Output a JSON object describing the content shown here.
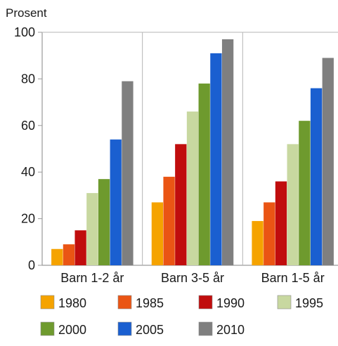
{
  "chart_data": {
    "type": "bar",
    "ylabel": "Prosent",
    "ylim": [
      0,
      100
    ],
    "yticks": [
      0,
      20,
      40,
      60,
      80,
      100
    ],
    "categories": [
      "Barn 1-2 år",
      "Barn 3-5 år",
      "Barn 1-5 år"
    ],
    "series": [
      {
        "name": "1980",
        "color": "#f5a300",
        "values": [
          7,
          27,
          19
        ]
      },
      {
        "name": "1985",
        "color": "#ea5514",
        "values": [
          9,
          38,
          27
        ]
      },
      {
        "name": "1990",
        "color": "#c00d0d",
        "values": [
          15,
          52,
          36
        ]
      },
      {
        "name": "1995",
        "color": "#c8d8a0",
        "values": [
          31,
          66,
          52
        ]
      },
      {
        "name": "2000",
        "color": "#6e9a2e",
        "values": [
          37,
          78,
          62
        ]
      },
      {
        "name": "2005",
        "color": "#1a5fd0",
        "values": [
          54,
          91,
          76
        ]
      },
      {
        "name": "2010",
        "color": "#7f7f7f",
        "values": [
          79,
          97,
          89
        ]
      }
    ],
    "grid": "vertical separators between category groups",
    "legend": "bottom"
  }
}
